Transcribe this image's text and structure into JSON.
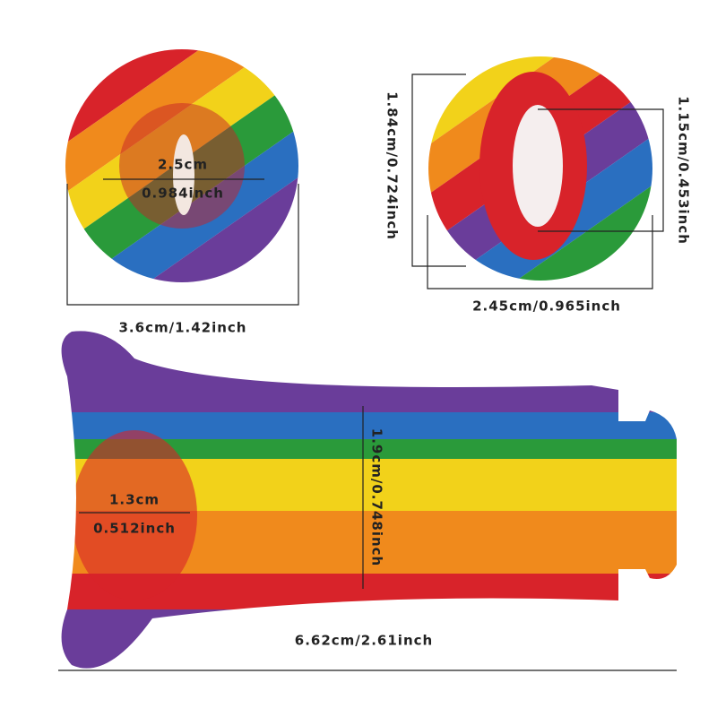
{
  "front_view": {
    "inner_width": "2.5cm",
    "inner_width_inch": "0.984inch",
    "outer_width": "3.6cm/1.42inch"
  },
  "side_view": {
    "height": "1.84cm/0.724inch",
    "inner_height": "1.15cm/0.453inch",
    "width": "2.45cm/0.965inch"
  },
  "top_view": {
    "height": "1.9cm/0.748inch",
    "opening": "1.3cm",
    "opening_inch": "0.512inch",
    "length": "6.62cm/2.61inch"
  }
}
